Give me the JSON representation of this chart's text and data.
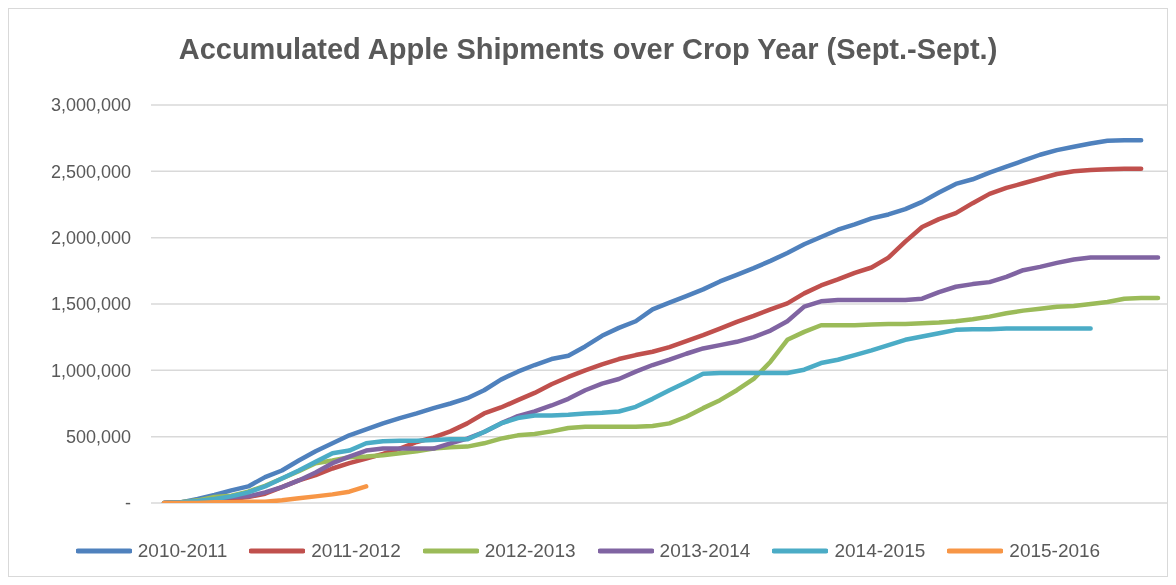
{
  "chart_data": {
    "type": "line",
    "title": "Accumulated Apple Shipments over Crop Year (Sept.-Sept.)",
    "categories": [
      null,
      null,
      null,
      null,
      null,
      null,
      null,
      null,
      null,
      null,
      null,
      null,
      null,
      null,
      null,
      null,
      null,
      null,
      null,
      null,
      null,
      null,
      null,
      null,
      null,
      null,
      null,
      null,
      null,
      null,
      null,
      null,
      null,
      null,
      null,
      null,
      null,
      null,
      null,
      null,
      null,
      null,
      null,
      null,
      null,
      null,
      null,
      null,
      null,
      null,
      null,
      null,
      null,
      null,
      null,
      null,
      null,
      null,
      null,
      null
    ],
    "ylim": [
      0,
      3000000
    ],
    "yticks": [
      {
        "value": 0,
        "label": "-"
      },
      {
        "value": 500000,
        "label": "500,000"
      },
      {
        "value": 1000000,
        "label": "1,000,000"
      },
      {
        "value": 1500000,
        "label": "1,500,000"
      },
      {
        "value": 2000000,
        "label": "2,000,000"
      },
      {
        "value": 2500000,
        "label": "2,500,000"
      },
      {
        "value": 3000000,
        "label": "3,000,000"
      }
    ],
    "grid": "y",
    "legend": "bottom",
    "line_style": "solid",
    "series": [
      {
        "name": "2010-2011",
        "color": "#4f81bd",
        "values": [
          0,
          5000,
          30000,
          60000,
          95000,
          125000,
          195000,
          245000,
          320000,
          390000,
          450000,
          510000,
          555000,
          600000,
          640000,
          675000,
          715000,
          750000,
          790000,
          850000,
          930000,
          990000,
          1040000,
          1085000,
          1110000,
          1180000,
          1260000,
          1320000,
          1370000,
          1460000,
          1510000,
          1560000,
          1610000,
          1670000,
          1720000,
          1770000,
          1825000,
          1885000,
          1950000,
          2005000,
          2060000,
          2100000,
          2145000,
          2175000,
          2215000,
          2270000,
          2340000,
          2405000,
          2440000,
          2490000,
          2535000,
          2580000,
          2625000,
          2660000,
          2685000,
          2710000,
          2730000,
          2735000,
          2735000,
          null
        ]
      },
      {
        "name": "2011-2012",
        "color": "#c0504d",
        "values": [
          0,
          5000,
          10000,
          20000,
          30000,
          45000,
          70000,
          120000,
          170000,
          210000,
          260000,
          300000,
          335000,
          370000,
          410000,
          460000,
          495000,
          540000,
          600000,
          675000,
          720000,
          775000,
          830000,
          895000,
          950000,
          1000000,
          1045000,
          1085000,
          1115000,
          1140000,
          1175000,
          1220000,
          1265000,
          1315000,
          1365000,
          1410000,
          1460000,
          1505000,
          1580000,
          1640000,
          1685000,
          1735000,
          1775000,
          1850000,
          1970000,
          2080000,
          2140000,
          2185000,
          2260000,
          2330000,
          2375000,
          2410000,
          2445000,
          2480000,
          2500000,
          2510000,
          2515000,
          2520000,
          2520000,
          null
        ]
      },
      {
        "name": "2012-2013",
        "color": "#9bbb59",
        "values": [
          0,
          5000,
          20000,
          45000,
          55000,
          85000,
          130000,
          185000,
          240000,
          300000,
          320000,
          345000,
          350000,
          360000,
          375000,
          390000,
          410000,
          420000,
          425000,
          450000,
          485000,
          510000,
          520000,
          540000,
          565000,
          575000,
          575000,
          575000,
          575000,
          580000,
          600000,
          650000,
          715000,
          775000,
          850000,
          935000,
          1065000,
          1230000,
          1290000,
          1340000,
          1340000,
          1340000,
          1345000,
          1350000,
          1350000,
          1355000,
          1360000,
          1370000,
          1385000,
          1405000,
          1430000,
          1450000,
          1465000,
          1480000,
          1485000,
          1500000,
          1515000,
          1540000,
          1545000,
          1545000
        ]
      },
      {
        "name": "2013-2014",
        "color": "#8064a2",
        "values": [
          0,
          5000,
          10000,
          25000,
          45000,
          50000,
          80000,
          120000,
          170000,
          230000,
          300000,
          350000,
          395000,
          410000,
          410000,
          410000,
          410000,
          450000,
          485000,
          535000,
          600000,
          655000,
          690000,
          735000,
          785000,
          850000,
          900000,
          935000,
          990000,
          1040000,
          1080000,
          1125000,
          1165000,
          1190000,
          1215000,
          1250000,
          1300000,
          1370000,
          1480000,
          1520000,
          1530000,
          1530000,
          1530000,
          1530000,
          1530000,
          1540000,
          1590000,
          1630000,
          1650000,
          1665000,
          1705000,
          1755000,
          1780000,
          1810000,
          1835000,
          1850000,
          1850000,
          1850000,
          1850000,
          1850000
        ]
      },
      {
        "name": "2014-2015",
        "color": "#4bacc6",
        "values": [
          0,
          5000,
          15000,
          30000,
          50000,
          80000,
          125000,
          185000,
          245000,
          310000,
          375000,
          395000,
          450000,
          465000,
          470000,
          470000,
          475000,
          480000,
          480000,
          535000,
          600000,
          640000,
          660000,
          660000,
          665000,
          675000,
          680000,
          690000,
          725000,
          785000,
          850000,
          910000,
          975000,
          980000,
          980000,
          980000,
          980000,
          980000,
          1005000,
          1055000,
          1080000,
          1115000,
          1150000,
          1190000,
          1230000,
          1255000,
          1280000,
          1305000,
          1310000,
          1310000,
          1315000,
          1315000,
          1315000,
          1315000,
          1315000,
          1315000,
          null,
          null,
          null,
          null
        ]
      },
      {
        "name": "2015-2016",
        "color": "#f79646",
        "values": [
          0,
          0,
          0,
          5000,
          5000,
          10000,
          10000,
          20000,
          35000,
          50000,
          65000,
          85000,
          125000,
          null,
          null,
          null,
          null,
          null,
          null,
          null,
          null,
          null,
          null,
          null,
          null,
          null,
          null,
          null,
          null,
          null,
          null,
          null,
          null,
          null,
          null,
          null,
          null,
          null,
          null,
          null,
          null,
          null,
          null,
          null,
          null,
          null,
          null,
          null,
          null,
          null,
          null,
          null,
          null,
          null,
          null,
          null,
          null,
          null,
          null,
          null
        ]
      }
    ]
  }
}
